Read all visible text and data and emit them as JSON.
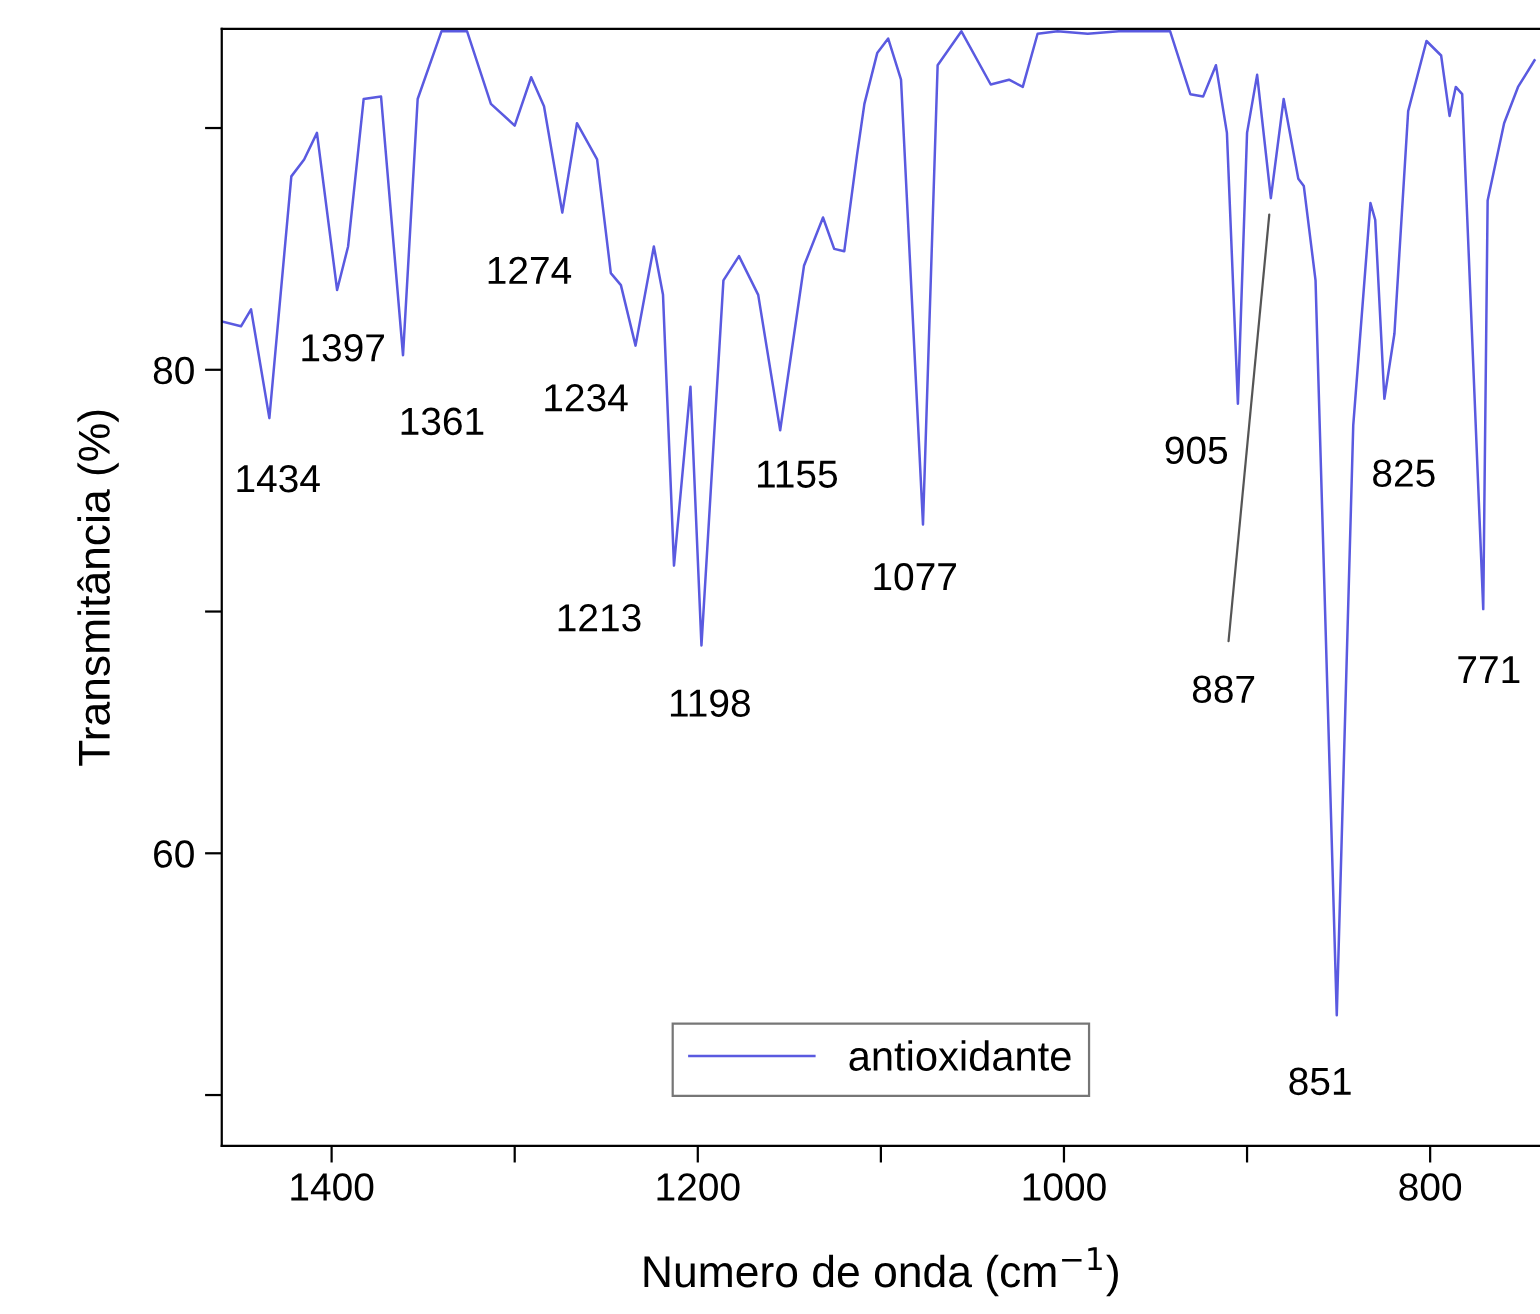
{
  "chart_data": {
    "type": "line",
    "xlabel": "Numero de onda (cm$^{−1}$)",
    "ylabel": "Transmitância (%)",
    "xlim": [
      1460,
      740
    ],
    "ylim": [
      47.9,
      94.1
    ],
    "xticks": [
      1400,
      {
        "value": 1300,
        "label": null
      },
      1200,
      {
        "value": 1100,
        "label": null
      },
      1000,
      {
        "value": 900,
        "label": null
      },
      800
    ],
    "yticks": [
      {
        "value": 50,
        "label": null
      },
      60,
      {
        "value": 70,
        "label": null
      },
      80,
      {
        "value": 90,
        "label": null
      }
    ],
    "grid": false,
    "legend": "bottom",
    "marker": "none",
    "line_style": "solid",
    "series": [
      {
        "name": "antioxidante",
        "color": "#5a5ae0",
        "x": [
          1460,
          1449.5,
          1444,
          1434,
          1422,
          1415,
          1408,
          1397,
          1391,
          1382.5,
          1373,
          1361,
          1353,
          1340,
          1326,
          1313,
          1300,
          1291,
          1284,
          1274,
          1266,
          1255,
          1247.5,
          1242,
          1234,
          1224,
          1219,
          1213,
          1204,
          1198,
          1186,
          1177.5,
          1167,
          1155,
          1142,
          1131.6,
          1125.5,
          1120,
          1113,
          1109,
          1102,
          1096,
          1089,
          1077,
          1069,
          1056,
          1040,
          1030,
          1022.5,
          1014.4,
          1003.5,
          987,
          970,
          942,
          931,
          924,
          917,
          911,
          905,
          900,
          894.5,
          887,
          880,
          872,
          869,
          862.6,
          851,
          842,
          832.6,
          830,
          825,
          819.5,
          812,
          802,
          794,
          789.4,
          786,
          782.5,
          771,
          768.6,
          759.6,
          752,
          743
        ],
        "values": [
          82.0,
          81.8,
          82.5,
          78.0,
          88.0,
          88.7,
          89.8,
          83.3,
          85.1,
          91.2,
          91.3,
          80.6,
          91.2,
          94.0,
          94.0,
          91.0,
          90.1,
          92.1,
          90.9,
          86.5,
          90.2,
          88.7,
          84.0,
          83.5,
          81.0,
          85.1,
          83.1,
          71.9,
          79.3,
          68.6,
          83.7,
          84.7,
          83.1,
          77.5,
          84.3,
          86.3,
          85.0,
          84.9,
          88.9,
          91.0,
          93.1,
          93.7,
          92.0,
          73.6,
          92.6,
          94.0,
          91.8,
          92.0,
          91.7,
          93.9,
          94.0,
          93.9,
          94.0,
          94.0,
          91.4,
          91.3,
          92.6,
          89.8,
          78.6,
          89.8,
          92.2,
          87.1,
          91.2,
          87.9,
          87.6,
          83.7,
          53.3,
          77.7,
          86.9,
          86.2,
          78.8,
          81.5,
          90.7,
          93.6,
          93.0,
          90.5,
          91.7,
          91.4,
          70.1,
          87.0,
          90.2,
          91.7,
          92.8
        ]
      }
    ],
    "annotations": [
      {
        "text": "1434",
        "x": 1434,
        "y": 78.0
      },
      {
        "text": "1397",
        "x": 1397,
        "y": 83.3
      },
      {
        "text": "1361",
        "x": 1361,
        "y": 80.6
      },
      {
        "text": "1274",
        "x": 1274,
        "y": 86.5
      },
      {
        "text": "1234",
        "x": 1234,
        "y": 81.0
      },
      {
        "text": "1213",
        "x": 1213,
        "y": 71.9
      },
      {
        "text": "1198",
        "x": 1198,
        "y": 68.6
      },
      {
        "text": "1155",
        "x": 1155,
        "y": 77.5
      },
      {
        "text": "1077",
        "x": 1077,
        "y": 73.6
      },
      {
        "text": "905",
        "x": 905,
        "y": 78.6
      },
      {
        "text": "887",
        "x": 887,
        "y": 87.1
      },
      {
        "text": "851",
        "x": 851,
        "y": 53.3
      },
      {
        "text": "825",
        "x": 825,
        "y": 78.8
      },
      {
        "text": "771",
        "x": 771,
        "y": 70.1
      }
    ]
  }
}
